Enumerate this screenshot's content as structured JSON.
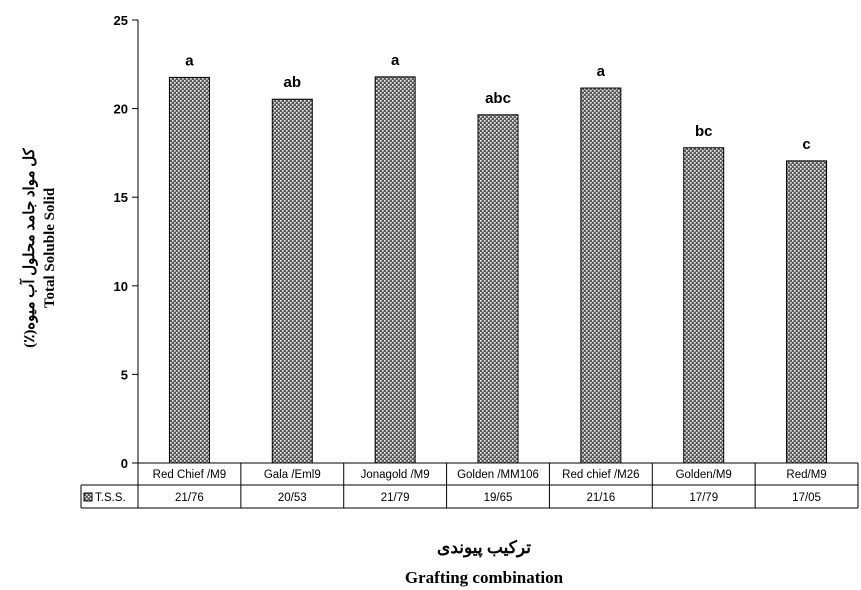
{
  "chart_data": {
    "type": "bar",
    "categories": [
      "Red Chief /M9",
      "Gala /Eml9",
      "Jonagold /M9",
      "Golden /MM106",
      "Red chief /M26",
      "Golden/M9",
      "Red/M9"
    ],
    "series": [
      {
        "name": "T.S.S.",
        "values": [
          21.76,
          20.53,
          21.79,
          19.65,
          21.16,
          17.79,
          17.05
        ],
        "value_labels": [
          "21/76",
          "20/53",
          "21/79",
          "19/65",
          "21/16",
          "17/79",
          "17/05"
        ],
        "color": "#555555"
      }
    ],
    "significance_letters": [
      "a",
      "ab",
      "a",
      "abc",
      "a",
      "bc",
      "c"
    ],
    "ylim": [
      0,
      25
    ],
    "yticks": [
      0,
      5,
      10,
      15,
      20,
      25
    ],
    "ylabel_fa": "کل مواد جامد محلول آب میوه(٪)",
    "ylabel_en": "Total Soluble Solid",
    "xlabel_fa": "ترکیب پیوندی",
    "xlabel_en": "Grafting combination",
    "data_table": true,
    "grid": false,
    "legend": "in data table row"
  }
}
